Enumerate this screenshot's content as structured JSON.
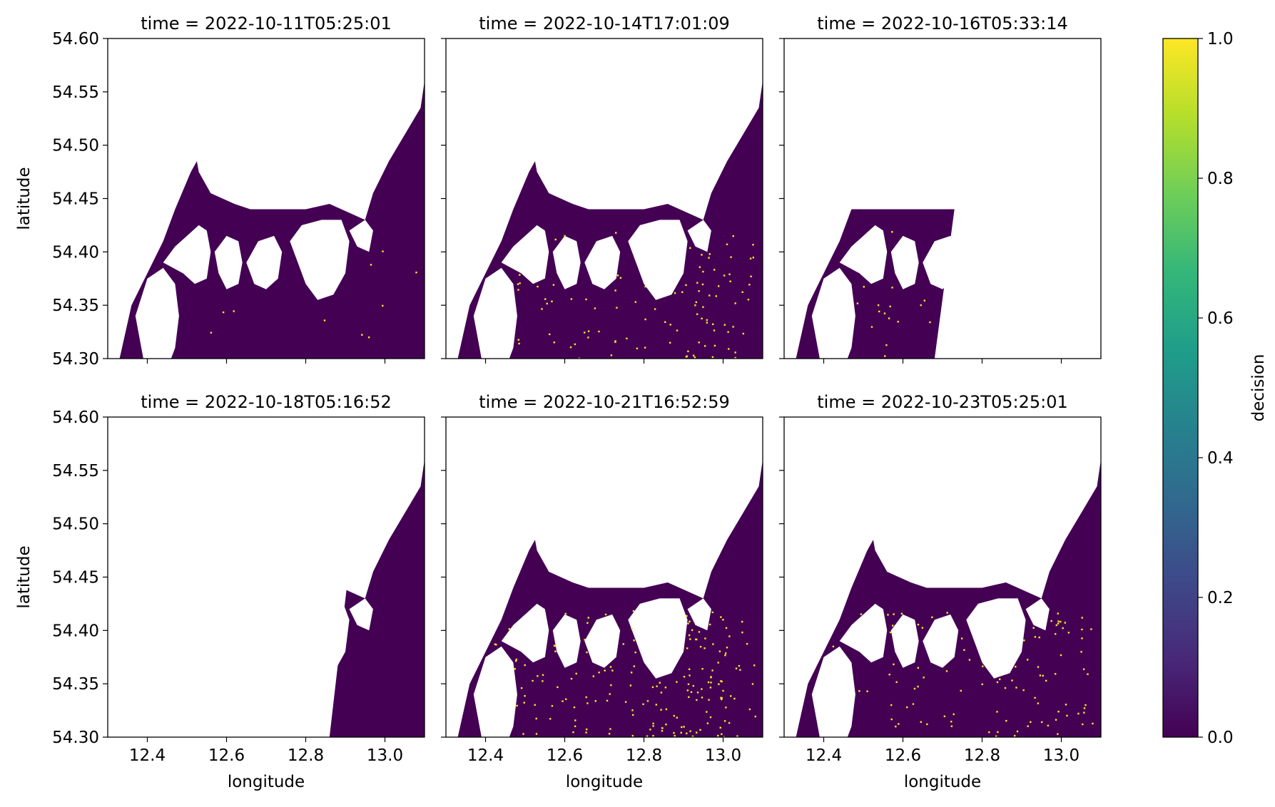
{
  "chart_data": {
    "type": "heatmap",
    "layout": {
      "rows": 2,
      "cols": 3
    },
    "xlabel": "longitude",
    "ylabel": "latitude",
    "xlim": [
      12.3,
      13.1
    ],
    "ylim": [
      54.3,
      54.6
    ],
    "x_ticks": [
      12.4,
      12.6,
      12.8,
      13.0
    ],
    "x_tick_labels": [
      "12.4",
      "12.6",
      "12.8",
      "13.0"
    ],
    "y_ticks": [
      54.3,
      54.35,
      54.4,
      54.45,
      54.5,
      54.55,
      54.6
    ],
    "y_tick_labels": [
      "54.30",
      "54.35",
      "54.40",
      "54.45",
      "54.50",
      "54.55",
      "54.60"
    ],
    "colorbar": {
      "label": "decision",
      "colormap": "viridis",
      "range": [
        0.0,
        1.0
      ],
      "ticks": [
        0.0,
        0.2,
        0.4,
        0.6,
        0.8,
        1.0
      ],
      "tick_labels": [
        "0.0",
        "0.2",
        "0.4",
        "0.6",
        "0.8",
        "1.0"
      ],
      "stops": [
        "#440154",
        "#482878",
        "#3e4989",
        "#31688e",
        "#26828e",
        "#1f9e89",
        "#35b779",
        "#6ece58",
        "#b5de2b",
        "#fde725"
      ]
    },
    "colors": {
      "land_value_0": "#440154",
      "value_1": "#fde725",
      "no_data": "#ffffff"
    },
    "panels": [
      {
        "title": "time = 2022-10-11T05:25:01",
        "coverage": "full",
        "flagged_density": 0.002
      },
      {
        "title": "time = 2022-10-14T17:01:09",
        "coverage": "full",
        "flagged_density": 0.02
      },
      {
        "title": "time = 2022-10-16T05:33:14",
        "coverage": "west",
        "flagged_density": 0.015
      },
      {
        "title": "time = 2022-10-18T05:16:52",
        "coverage": "east",
        "flagged_density": 0.0
      },
      {
        "title": "time = 2022-10-21T16:52:59",
        "coverage": "full",
        "flagged_density": 0.035
      },
      {
        "title": "time = 2022-10-23T05:25:01",
        "coverage": "full",
        "flagged_density": 0.02
      }
    ]
  }
}
